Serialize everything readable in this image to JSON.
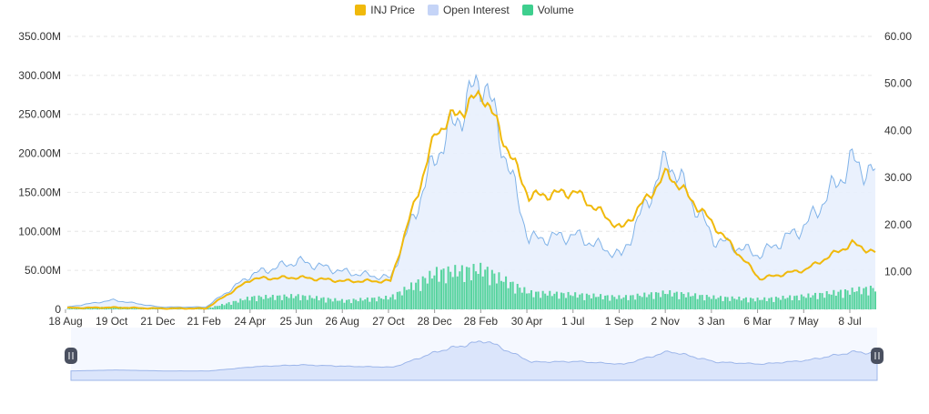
{
  "chart_data": {
    "type": "line",
    "title": "",
    "legend": {
      "position": "top-center",
      "entries": [
        {
          "name": "INJ Price",
          "color": "#f0b90b"
        },
        {
          "name": "Open Interest",
          "color": "#c5d4f7"
        },
        {
          "name": "Volume",
          "color": "#3ecf8e"
        }
      ]
    },
    "x_tick_labels": [
      "18 Aug",
      "19 Oct",
      "21 Dec",
      "21 Feb",
      "24 Apr",
      "25 Jun",
      "26 Aug",
      "27 Oct",
      "28 Dec",
      "28 Feb",
      "30 Apr",
      "1 Jul",
      "1 Sep",
      "2 Nov",
      "3 Jan",
      "6 Mar",
      "7 May",
      "8 Jul"
    ],
    "y_left": {
      "ticks": [
        "0",
        "50.00M",
        "100.00M",
        "150.00M",
        "200.00M",
        "250.00M",
        "300.00M",
        "350.00M"
      ],
      "min": 0,
      "max": 350000000
    },
    "y_right": {
      "ticks": [
        "10.00",
        "20.00",
        "30.00",
        "40.00",
        "50.00",
        "60.00"
      ],
      "min": 2,
      "max": 60
    },
    "grid": true,
    "x_index": [
      0,
      10,
      20,
      30,
      40,
      50,
      60,
      70,
      80,
      90,
      100,
      110,
      120,
      130,
      140,
      150,
      160,
      170,
      175
    ],
    "series": [
      {
        "name": "Open Interest",
        "axis": "left",
        "style": "area",
        "values": [
          3000000,
          12000000,
          3000000,
          3000000,
          45000000,
          62000000,
          48000000,
          40000000,
          200000000,
          300000000,
          90000000,
          95000000,
          68000000,
          195000000,
          90000000,
          70000000,
          108000000,
          190000000,
          172000000
        ]
      },
      {
        "name": "INJ Price",
        "axis": "right",
        "style": "line",
        "values": [
          2.3,
          2.4,
          2.2,
          2.2,
          8.5,
          8.8,
          8.0,
          8.0,
          40.0,
          48.0,
          26.0,
          27.0,
          19.0,
          31.0,
          20.0,
          8.5,
          10.5,
          16.0,
          14.0
        ]
      },
      {
        "name": "Volume",
        "axis": "left",
        "style": "bar",
        "values": [
          1000000,
          4000000,
          1000000,
          1000000,
          18000000,
          20000000,
          13000000,
          18000000,
          55000000,
          60000000,
          25000000,
          22000000,
          18000000,
          25000000,
          18000000,
          15000000,
          20000000,
          28000000,
          32000000
        ]
      }
    ]
  },
  "navigator": {
    "left_handle": "grip-icon",
    "right_handle": "grip-icon"
  }
}
